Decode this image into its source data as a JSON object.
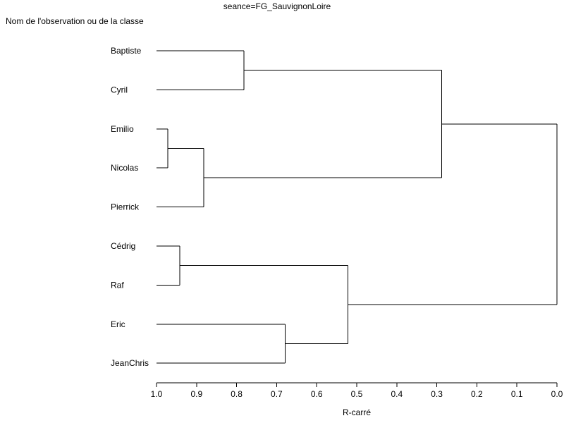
{
  "chart_data": {
    "type": "dendrogram",
    "title": "seance=FG_SauvignonLoire",
    "ylabel": "Nom de l'observation ou de la classe",
    "xlabel": "R-carré",
    "xlim": [
      1.0,
      0.0
    ],
    "xticks": [
      "1.0",
      "0.9",
      "0.8",
      "0.7",
      "0.6",
      "0.5",
      "0.4",
      "0.3",
      "0.2",
      "0.1",
      "0.0"
    ],
    "leaves": [
      "Baptiste",
      "Cyril",
      "Emilio",
      "Nicolas",
      "Pierrick",
      "Cédrig",
      "Raf",
      "Eric",
      "JeanChris"
    ],
    "merges": [
      {
        "id": "C1",
        "children": [
          "Emilio",
          "Nicolas"
        ],
        "r_squared": 0.972
      },
      {
        "id": "C2",
        "children": [
          "Cédrig",
          "Raf"
        ],
        "r_squared": 0.942
      },
      {
        "id": "C3",
        "children": [
          "C1",
          "Pierrick"
        ],
        "r_squared": 0.882
      },
      {
        "id": "C4",
        "children": [
          "Baptiste",
          "Cyril"
        ],
        "r_squared": 0.782
      },
      {
        "id": "C5",
        "children": [
          "Eric",
          "JeanChris"
        ],
        "r_squared": 0.679
      },
      {
        "id": "C6",
        "children": [
          "C2",
          "C5"
        ],
        "r_squared": 0.522
      },
      {
        "id": "C7",
        "children": [
          "C4",
          "C3"
        ],
        "r_squared": 0.288
      },
      {
        "id": "C8",
        "children": [
          "C7",
          "C6"
        ],
        "r_squared": 0.0
      }
    ],
    "grid": false
  }
}
